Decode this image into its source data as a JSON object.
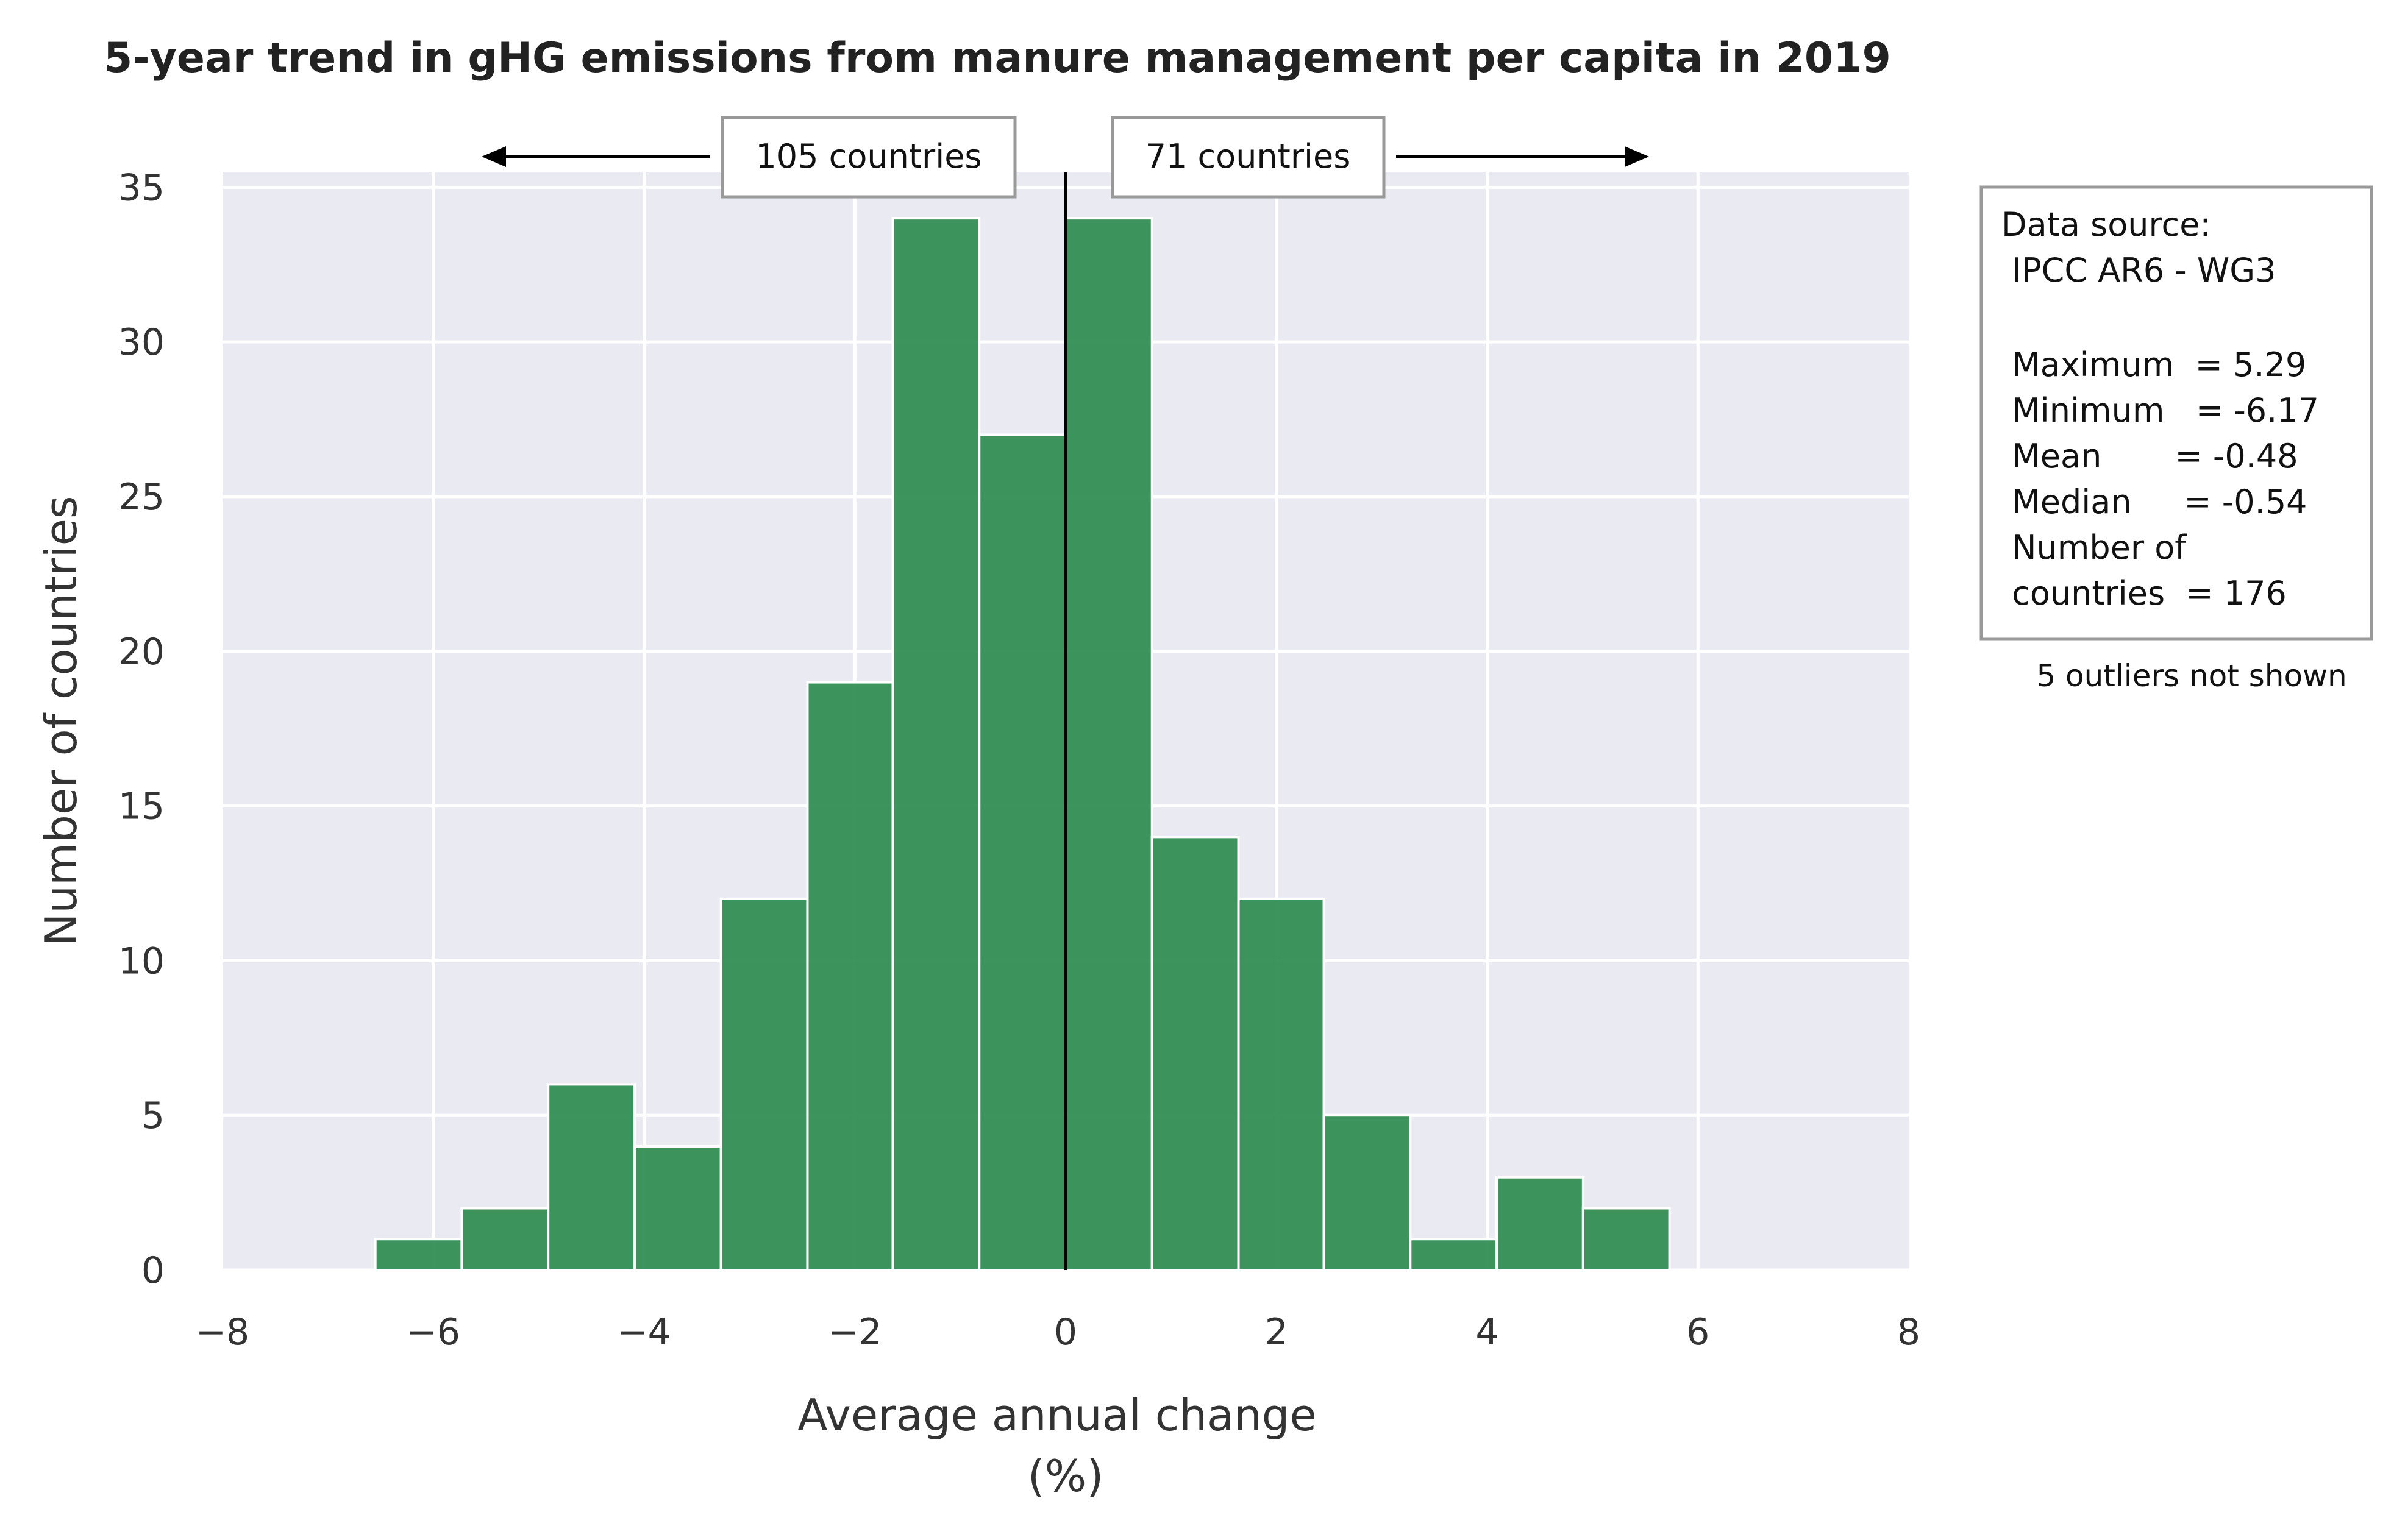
{
  "chart_data": {
    "type": "bar",
    "title": "5-year trend in gHG emissions from manure management per capita in 2019",
    "xlabel_lines": [
      "Average annual change",
      "(%)"
    ],
    "ylabel": "Number of countries",
    "xlim": [
      -8,
      8
    ],
    "ylim": [
      0,
      35.5
    ],
    "xticks": [
      -8,
      -6,
      -4,
      -2,
      0,
      2,
      4,
      6,
      8
    ],
    "xtick_labels": [
      "−8",
      "−6",
      "−4",
      "−2",
      "0",
      "2",
      "4",
      "6",
      "8"
    ],
    "yticks": [
      0,
      5,
      10,
      15,
      20,
      25,
      30,
      35
    ],
    "ytick_labels": [
      "0",
      "5",
      "10",
      "15",
      "20",
      "25",
      "30",
      "35"
    ],
    "grid": true,
    "bar_color": "#2e8b4f",
    "bins": [
      {
        "x0": -6.55,
        "x1": -5.73,
        "count": 1
      },
      {
        "x0": -5.73,
        "x1": -4.91,
        "count": 2
      },
      {
        "x0": -4.91,
        "x1": -4.09,
        "count": 6
      },
      {
        "x0": -4.09,
        "x1": -3.27,
        "count": 4
      },
      {
        "x0": -3.27,
        "x1": -2.45,
        "count": 12
      },
      {
        "x0": -2.45,
        "x1": -1.64,
        "count": 19
      },
      {
        "x0": -1.64,
        "x1": -0.82,
        "count": 34
      },
      {
        "x0": -0.82,
        "x1": 0.0,
        "count": 27
      },
      {
        "x0": 0.0,
        "x1": 0.82,
        "count": 34
      },
      {
        "x0": 0.82,
        "x1": 1.64,
        "count": 14
      },
      {
        "x0": 1.64,
        "x1": 2.45,
        "count": 12
      },
      {
        "x0": 2.45,
        "x1": 3.27,
        "count": 5
      },
      {
        "x0": 3.27,
        "x1": 4.09,
        "count": 1
      },
      {
        "x0": 4.09,
        "x1": 4.91,
        "count": 3
      },
      {
        "x0": 4.91,
        "x1": 5.73,
        "count": 2
      }
    ],
    "reference_line_x": 0,
    "annotations": {
      "left_count": "105 countries",
      "right_count": "71 countries"
    },
    "info_box": {
      "lines": [
        "Data source:",
        " IPCC AR6 - WG3",
        "",
        " Maximum  = 5.29",
        " Minimum   = -6.17",
        " Mean       = -0.48",
        " Median     = -0.54",
        " Number of",
        " countries  = 176"
      ]
    },
    "note": "5 outliers not shown"
  }
}
